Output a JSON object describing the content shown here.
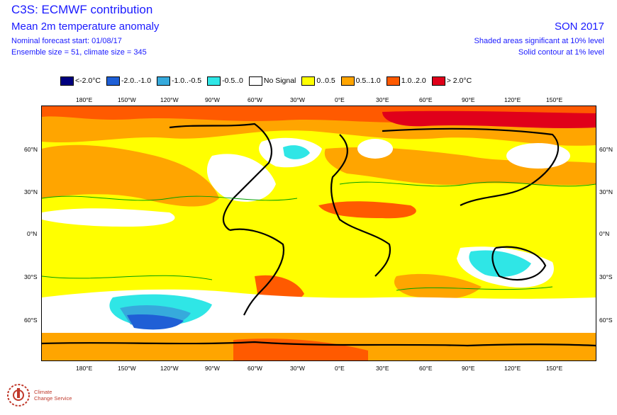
{
  "header": {
    "title": "C3S: ECMWF contribution",
    "subtitle": "Mean 2m temperature anomaly",
    "forecast_start": "Nominal forecast start: 01/08/17",
    "ensemble": "Ensemble size = 51, climate size = 345",
    "season": "SON 2017",
    "significance_shaded": "Shaded areas significant at 10% level",
    "significance_contour": "Solid contour at 1% level"
  },
  "legend": [
    {
      "label": "<-2.0°C",
      "color": "#00007f"
    },
    {
      "label": "-2.0..-1.0",
      "color": "#1f5fd6"
    },
    {
      "label": "-1.0..-0.5",
      "color": "#36aadc"
    },
    {
      "label": "-0.5..0",
      "color": "#2fe6e6"
    },
    {
      "label": "No Signal",
      "color": "#ffffff"
    },
    {
      "label": "0..0.5",
      "color": "#ffff00"
    },
    {
      "label": "0.5..1.0",
      "color": "#ffa500"
    },
    {
      "label": "1.0..2.0",
      "color": "#ff5a00"
    },
    {
      "label": "> 2.0°C",
      "color": "#e0001a"
    }
  ],
  "axes": {
    "lon_labels": [
      "180°E",
      "150°W",
      "120°W",
      "90°W",
      "60°W",
      "30°W",
      "0°E",
      "30°E",
      "60°E",
      "90°E",
      "120°E",
      "150°E"
    ],
    "lat_labels": [
      "60°N",
      "30°N",
      "0°N",
      "30°S",
      "60°S"
    ]
  },
  "colors": {
    "text_blue": "#1a1aff",
    "coast": "#000000",
    "contour": "#00a000"
  },
  "logo": {
    "line1": "Climate",
    "line2": "Change Service"
  }
}
